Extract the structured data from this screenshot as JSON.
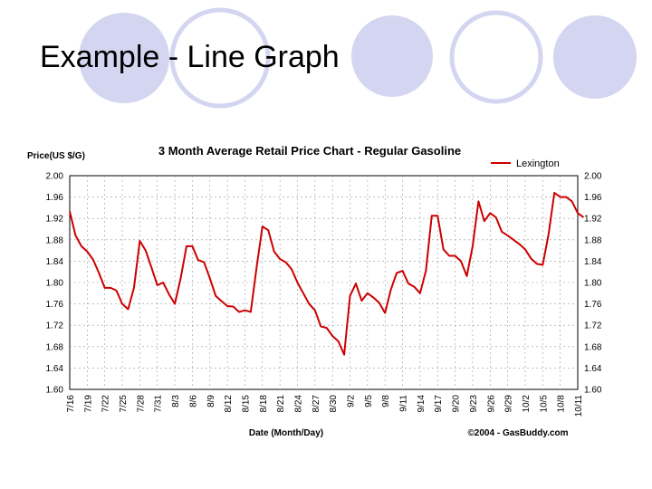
{
  "slide": {
    "title": "Example - Line Graph"
  },
  "colors": {
    "decor_circle": "#d4d5f0",
    "line": "#cc0000",
    "grid": "#999999"
  },
  "chart_data": {
    "type": "line",
    "title": "3 Month Average Retail Price Chart - Regular Gasoline",
    "ylabel": "Price(US $/G)",
    "xlabel": "Date (Month/Day)",
    "credit": "©2004 - GasBuddy.com",
    "legend": {
      "position": "top-right",
      "entries": [
        "Lexington"
      ]
    },
    "grid": true,
    "ylim": [
      1.6,
      2.0
    ],
    "y_ticks": [
      "2.00",
      "1.96",
      "1.92",
      "1.88",
      "1.84",
      "1.80",
      "1.76",
      "1.72",
      "1.68",
      "1.64",
      "1.60"
    ],
    "x_ticks": [
      "7/16",
      "7/19",
      "7/22",
      "7/25",
      "7/28",
      "7/31",
      "8/3",
      "8/6",
      "8/9",
      "8/12",
      "8/15",
      "8/18",
      "8/21",
      "8/24",
      "8/27",
      "8/30",
      "9/2",
      "9/5",
      "9/8",
      "9/11",
      "9/14",
      "9/17",
      "9/20",
      "9/23",
      "9/26",
      "9/29",
      "10/2",
      "10/5",
      "10/8",
      "10/11"
    ],
    "series": [
      {
        "name": "Lexington",
        "x_day": [
          0,
          1,
          2,
          3,
          4,
          5,
          6,
          7,
          8,
          9,
          10,
          11,
          12,
          13,
          14,
          15,
          16,
          17,
          18,
          19,
          20,
          21,
          22,
          23,
          24,
          25,
          26,
          27,
          28,
          29,
          30,
          31,
          32,
          33,
          34,
          35,
          36,
          37,
          38,
          39,
          40,
          41,
          42,
          43,
          44,
          45,
          46,
          47,
          48,
          49,
          50,
          51,
          52,
          53,
          54,
          55,
          56,
          57,
          58,
          59,
          60,
          61,
          62,
          63,
          64,
          65,
          66,
          67,
          68,
          69,
          70,
          71,
          72,
          73,
          74,
          75,
          76,
          77,
          78,
          79,
          80,
          81,
          82,
          83,
          84,
          85,
          86,
          87,
          88
        ],
        "values": [
          1.933,
          1.888,
          1.868,
          1.858,
          1.843,
          1.818,
          1.79,
          1.79,
          1.785,
          1.76,
          1.75,
          1.79,
          1.878,
          1.86,
          1.828,
          1.795,
          1.8,
          1.778,
          1.76,
          1.808,
          1.868,
          1.868,
          1.842,
          1.838,
          1.808,
          1.775,
          1.765,
          1.756,
          1.755,
          1.745,
          1.748,
          1.745,
          1.828,
          1.905,
          1.898,
          1.858,
          1.844,
          1.838,
          1.825,
          1.8,
          1.78,
          1.76,
          1.748,
          1.718,
          1.715,
          1.7,
          1.69,
          1.665,
          1.775,
          1.798,
          1.766,
          1.78,
          1.772,
          1.762,
          1.743,
          1.787,
          1.818,
          1.822,
          1.798,
          1.792,
          1.78,
          1.822,
          1.925,
          1.925,
          1.862,
          1.85,
          1.85,
          1.84,
          1.812,
          1.868,
          1.952,
          1.915,
          1.93,
          1.922,
          1.895,
          1.888,
          1.88,
          1.872,
          1.862,
          1.845,
          1.835,
          1.833,
          1.89,
          1.968,
          1.96,
          1.96,
          1.952,
          1.93,
          1.922
        ]
      }
    ]
  }
}
